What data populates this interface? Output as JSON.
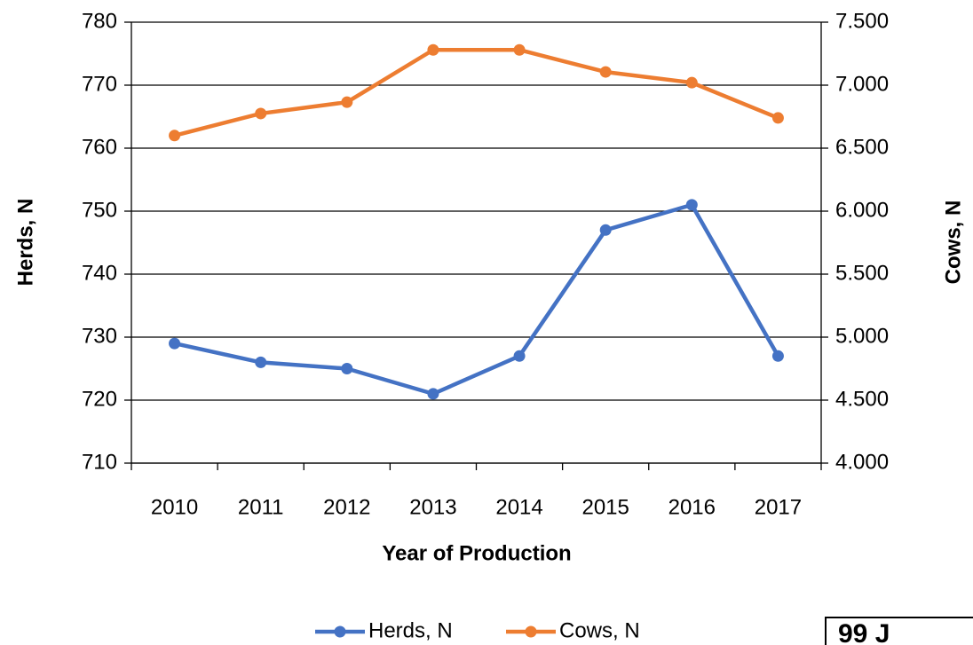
{
  "chart_data": {
    "type": "line",
    "x_label": "Year of Production",
    "y_label": "Herds, N",
    "y2_label": "Cows, N",
    "annotation": "99 J",
    "categories": [
      "2010",
      "2011",
      "2012",
      "2013",
      "2014",
      "2015",
      "2016",
      "2017"
    ],
    "series": [
      {
        "name": "Herds, N",
        "color": "#4472c4",
        "values": [
          729,
          726,
          725,
          721,
          727,
          747,
          751,
          727
        ]
      },
      {
        "name": "Cows, N",
        "color": "#ed7d31",
        "axis": "y2",
        "values": [
          6600,
          6775,
          6865,
          7280,
          7280,
          7105,
          7020,
          6740
        ]
      }
    ],
    "ylim": [
      710,
      780
    ],
    "yticks": [
      710,
      720,
      730,
      740,
      750,
      760,
      770,
      780
    ],
    "y2lim": [
      4000,
      7500
    ],
    "y2ticks": [
      {
        "value": 4000,
        "label": "4.000"
      },
      {
        "value": 4500,
        "label": "4.500"
      },
      {
        "value": 5000,
        "label": "5.000"
      },
      {
        "value": 5500,
        "label": "5.500"
      },
      {
        "value": 6000,
        "label": "6.000"
      },
      {
        "value": 6500,
        "label": "6.500"
      },
      {
        "value": 7000,
        "label": "7.000"
      },
      {
        "value": 7500,
        "label": "7.500"
      }
    ],
    "grid": true,
    "legend": "bottom"
  }
}
